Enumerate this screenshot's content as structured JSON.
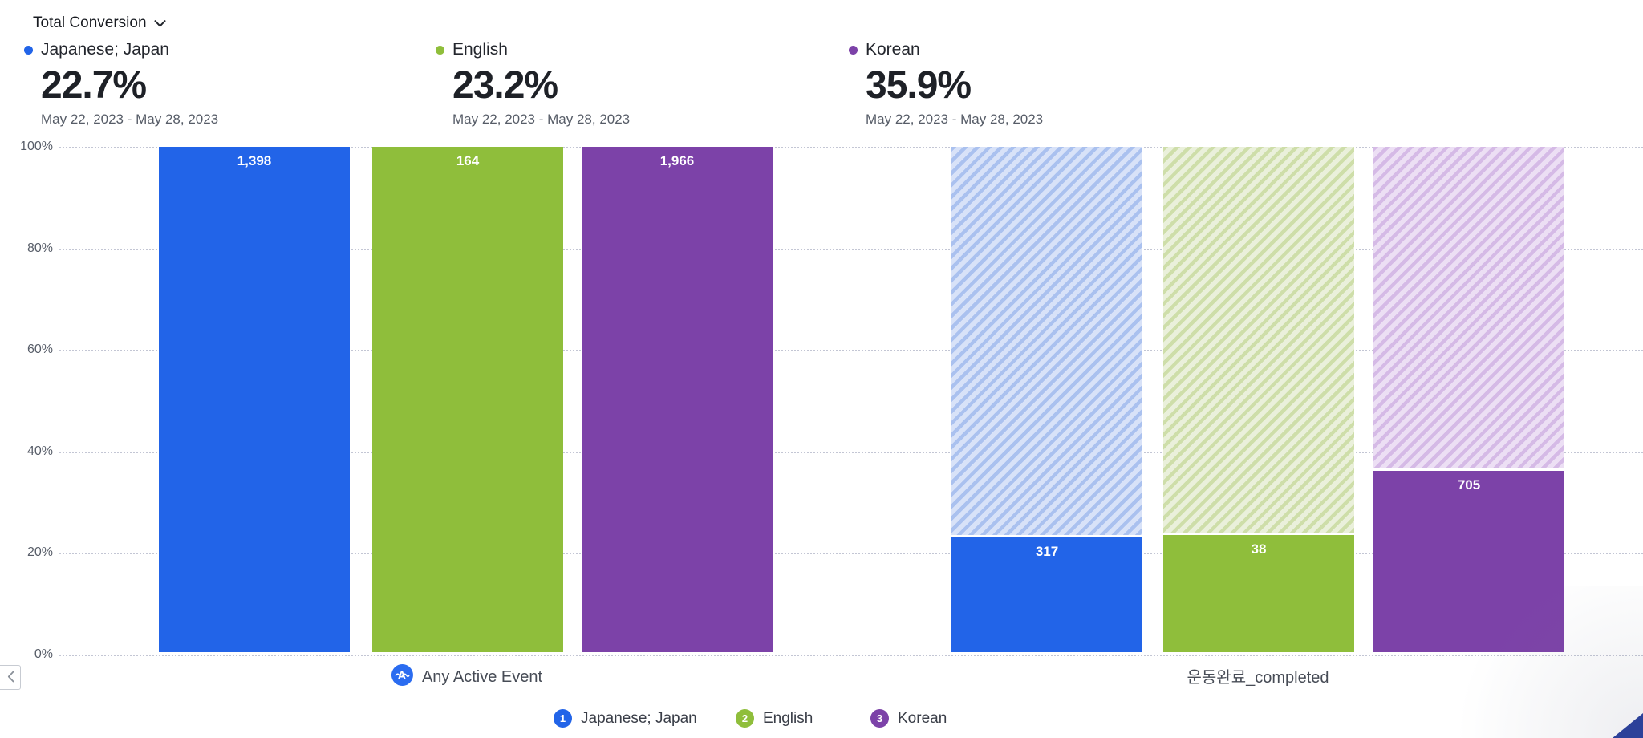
{
  "metric_selector": {
    "label": "Total Conversion"
  },
  "summaries": [
    {
      "name": "Japanese; Japan",
      "value": "22.7%",
      "date_range": "May 22, 2023 - May 28, 2023"
    },
    {
      "name": "English",
      "value": "23.2%",
      "date_range": "May 22, 2023 - May 28, 2023"
    },
    {
      "name": "Korean",
      "value": "35.9%",
      "date_range": "May 22, 2023 - May 28, 2023"
    }
  ],
  "chart_data": {
    "type": "bar",
    "subtype": "funnel-conversion",
    "title": "Total Conversion",
    "grid": "dotted-horizontal",
    "legend_position": "bottom",
    "y_axis": {
      "min": 0,
      "max": 100,
      "unit": "%",
      "ticks": [
        "100%",
        "80%",
        "60%",
        "40%",
        "20%",
        "0%"
      ]
    },
    "series": [
      {
        "name": "Japanese; Japan",
        "legend_index": "1",
        "color": "#2264e8",
        "hatch_bg": "#d8e2f8",
        "hatch_stripe": "#aac1ef",
        "total_conversion_pct": 22.7
      },
      {
        "name": "English",
        "legend_index": "2",
        "color": "#8fbe3b",
        "hatch_bg": "#eaf0db",
        "hatch_stripe": "#cedea9",
        "total_conversion_pct": 23.2
      },
      {
        "name": "Korean",
        "legend_index": "3",
        "color": "#7c42a8",
        "hatch_bg": "#ecdff4",
        "hatch_stripe": "#d5bae6",
        "total_conversion_pct": 35.9
      }
    ],
    "steps": [
      {
        "label": "Any Active Event",
        "icon": "any-active-event-icon",
        "counts": [
          1398,
          164,
          1966
        ],
        "count_labels": [
          "1,398",
          "164",
          "1,966"
        ],
        "pct_of_first": [
          100,
          100,
          100
        ]
      },
      {
        "label": "운동완료_completed",
        "icon": null,
        "counts": [
          317,
          38,
          705
        ],
        "count_labels": [
          "317",
          "38",
          "705"
        ],
        "pct_of_first": [
          22.7,
          23.2,
          35.9
        ]
      }
    ]
  }
}
